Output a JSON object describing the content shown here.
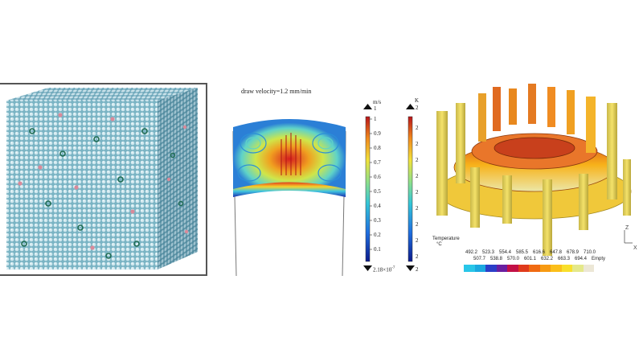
{
  "panel_middle": {
    "caption": "draw velocity=1.2 mm/min",
    "velocity_colorbar": {
      "unit": "m/s",
      "top_value": "1",
      "ticks": [
        "1",
        "0.9",
        "0.8",
        "0.7",
        "0.6",
        "0.5",
        "0.4",
        "0.3",
        "0.2",
        "0.1"
      ],
      "bottom_value": "2.18×10",
      "bottom_exponent": "-7"
    },
    "temperature_colorbar": {
      "unit": "K",
      "top_value": "2",
      "ticks": [
        "2",
        "2",
        "2",
        "2",
        "2",
        "2",
        "2",
        "2",
        "2"
      ],
      "bottom_value": "2"
    }
  },
  "panel_right": {
    "legend_title": "Temperature",
    "legend_unit": "°C",
    "ticks_top": [
      "492.2",
      "523.3",
      "554.4",
      "585.5",
      "616.6",
      "647.8",
      "678.9",
      "710.0"
    ],
    "ticks_bottom": [
      "507.7",
      "538.8",
      "570.0",
      "601.1",
      "632.2",
      "663.3",
      "694.4",
      "Empty"
    ],
    "axis_z": "Z",
    "axis_x": "X",
    "colors": [
      "#29c6e8",
      "#1ba8e0",
      "#2b3ec8",
      "#6a1fa0",
      "#c21046",
      "#e03a1c",
      "#f06a12",
      "#f79a12",
      "#fbbf1a",
      "#f8df2c",
      "#e4e88a",
      "#ece7d6"
    ]
  }
}
